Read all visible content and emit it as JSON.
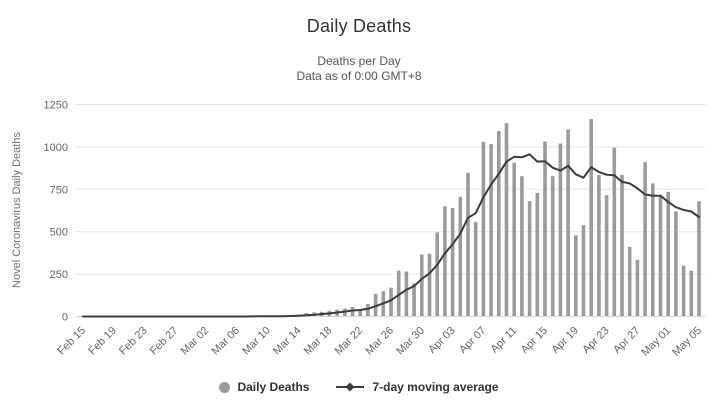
{
  "chart_data": {
    "type": "bar",
    "title": "Daily Deaths",
    "subtitle_line1": "Deaths per Day",
    "subtitle_line2": "Data as of 0:00 GMT+8",
    "xlabel": "",
    "ylabel": "Novel Coronavirus Daily Deaths",
    "ylim": [
      0,
      1250
    ],
    "yticks": [
      0,
      250,
      500,
      750,
      1000,
      1250
    ],
    "x_tick_every": 4,
    "grid": true,
    "legend_position": "bottom",
    "colors": {
      "bar": "#9b9b9b",
      "line": "#3c3c3c",
      "gridline": "#e6e6e6",
      "axis_line": "#ccd6eb",
      "tick_label": "#666666",
      "axis_title": "#707070",
      "title": "#333333",
      "subtitle": "#555555",
      "legend_text": "#333333"
    },
    "categories": [
      "Feb 15",
      "Feb 16",
      "Feb 17",
      "Feb 18",
      "Feb 19",
      "Feb 20",
      "Feb 21",
      "Feb 22",
      "Feb 23",
      "Feb 24",
      "Feb 25",
      "Feb 26",
      "Feb 27",
      "Feb 28",
      "Feb 29",
      "Mar 01",
      "Mar 02",
      "Mar 03",
      "Mar 04",
      "Mar 05",
      "Mar 06",
      "Mar 07",
      "Mar 08",
      "Mar 09",
      "Mar 10",
      "Mar 11",
      "Mar 12",
      "Mar 13",
      "Mar 14",
      "Mar 15",
      "Mar 16",
      "Mar 17",
      "Mar 18",
      "Mar 19",
      "Mar 20",
      "Mar 21",
      "Mar 22",
      "Mar 23",
      "Mar 24",
      "Mar 25",
      "Mar 26",
      "Mar 27",
      "Mar 28",
      "Mar 29",
      "Mar 30",
      "Mar 31",
      "Apr 01",
      "Apr 02",
      "Apr 03",
      "Apr 04",
      "Apr 05",
      "Apr 06",
      "Apr 07",
      "Apr 08",
      "Apr 09",
      "Apr 10",
      "Apr 11",
      "Apr 12",
      "Apr 13",
      "Apr 14",
      "Apr 15",
      "Apr 16",
      "Apr 17",
      "Apr 18",
      "Apr 19",
      "Apr 20",
      "Apr 21",
      "Apr 22",
      "Apr 23",
      "Apr 24",
      "Apr 25",
      "Apr 26",
      "Apr 27",
      "Apr 28",
      "Apr 29",
      "Apr 30",
      "May 01",
      "May 02",
      "May 03",
      "May 04",
      "May 05"
    ],
    "x_tick_labels": [
      "Feb 15",
      "Feb 19",
      "Feb 23",
      "Feb 27",
      "Mar 02",
      "Mar 06",
      "Mar 10",
      "Mar 14",
      "Mar 18",
      "Mar 22",
      "Mar 26",
      "Mar 30",
      "Apr 03",
      "Apr 07",
      "Apr 11",
      "Apr 15",
      "Apr 19",
      "Apr 23",
      "Apr 27",
      "May 01",
      "May 05"
    ],
    "series": [
      {
        "name": "Daily Deaths",
        "type": "bar",
        "color": "#9b9b9b",
        "values": [
          0,
          0,
          0,
          0,
          0,
          0,
          0,
          0,
          0,
          0,
          0,
          0,
          0,
          0,
          0,
          0,
          0,
          0,
          0,
          1,
          1,
          0,
          2,
          3,
          2,
          2,
          3,
          8,
          12,
          20,
          24,
          28,
          33,
          40,
          47,
          56,
          40,
          74,
          134,
          149,
          170,
          270,
          265,
          195,
          365,
          370,
          495,
          650,
          640,
          705,
          847,
          557,
          1030,
          1017,
          1093,
          1140,
          906,
          827,
          680,
          729,
          1032,
          827,
          1020,
          1103,
          479,
          538,
          1164,
          835,
          715,
          995,
          835,
          410,
          335,
          910,
          785,
          715,
          735,
          620,
          300,
          270,
          680
        ]
      },
      {
        "name": "7-day moving average",
        "type": "line",
        "color": "#3c3c3c",
        "derived_from": "Daily Deaths",
        "moving_average_window": 7
      }
    ]
  }
}
